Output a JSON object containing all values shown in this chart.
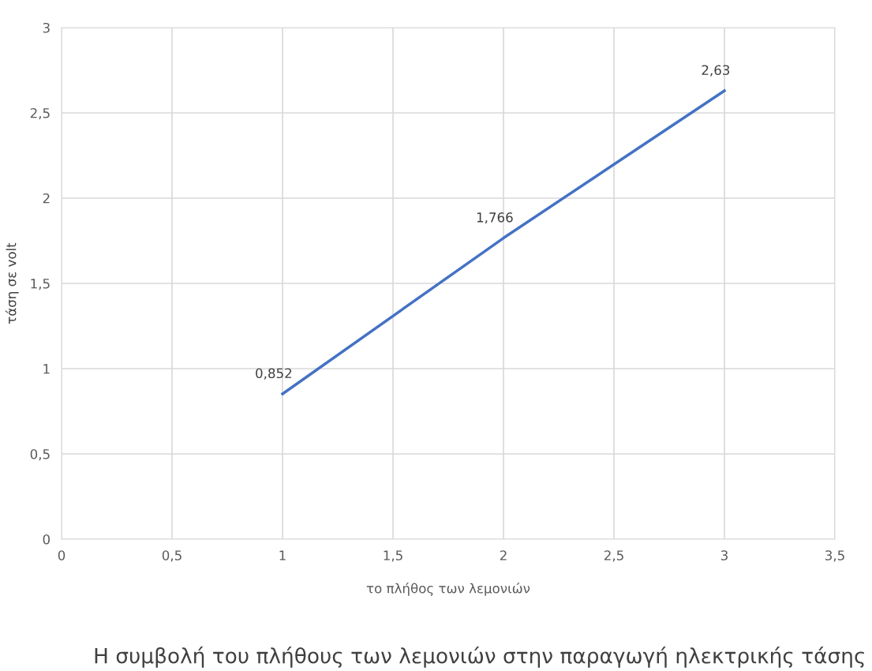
{
  "chart_data": {
    "type": "line",
    "title": "Η συμβολή του πλήθους των λεμονιών στην παραγωγή ηλεκτρικής τάσης",
    "xlabel": "το πλήθος των λεμονιών",
    "ylabel": "τάση σε volt",
    "x": [
      1,
      2,
      3
    ],
    "series": [
      {
        "color": "#4472c4",
        "values": [
          0.852,
          1.766,
          2.63
        ]
      }
    ],
    "value_labels": [
      "0,852",
      "1,766",
      "2,63"
    ],
    "xlim": [
      0,
      3.5
    ],
    "xticks": [
      0,
      {
        "value": 0.5,
        "label": "0,5"
      },
      1,
      {
        "value": 1.5,
        "label": "1,5"
      },
      2,
      {
        "value": 2.5,
        "label": "2,5"
      },
      3,
      {
        "value": 3.5,
        "label": "3,5"
      }
    ],
    "ylim": [
      0,
      3
    ],
    "yticks": [
      0,
      {
        "value": 0.5,
        "label": "0,5"
      },
      1,
      {
        "value": 1.5,
        "label": "1,5"
      },
      2,
      {
        "value": 2.5,
        "label": "2,5"
      },
      3
    ],
    "grid": true,
    "line_style": "solid",
    "marker": "none"
  }
}
